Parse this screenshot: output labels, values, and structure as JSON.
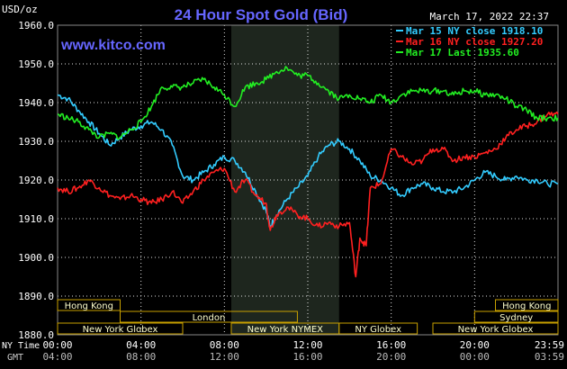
{
  "header": {
    "title": "24 Hour Spot Gold (Bid)",
    "datetime": "March 17, 2022 22:37",
    "watermark": "www.kitco.com",
    "unit_label": "USD/oz"
  },
  "legend": {
    "placement": "top-right",
    "items": [
      {
        "label": "Mar 15 NY close 1918.10",
        "color": "#33ccff"
      },
      {
        "label": "Mar 16 NY close 1927.20",
        "color": "#ff2020"
      },
      {
        "label": "Mar 17 Last 1935.60",
        "color": "#22ee22"
      }
    ]
  },
  "axis_labels": {
    "ny_time": "NY Time",
    "gmt": "GMT"
  },
  "colors": {
    "background": "#000000",
    "grid": "#e0e0e0",
    "title": "#6666ff",
    "watermark": "#6666ff",
    "market_box_bg": "#ffffcc",
    "market_box_border": "#c8a000",
    "nymex_shade": "#1e261e"
  },
  "markets": [
    {
      "label": "Hong Kong",
      "start": 0.0,
      "end": 3.0,
      "row": 0
    },
    {
      "label": "Hong Kong",
      "start": 21.0,
      "end": 24.0,
      "row": 0
    },
    {
      "label": "London",
      "start": 3.0,
      "end": 11.5,
      "row": 1
    },
    {
      "label": "Sydney",
      "start": 20.0,
      "end": 24.0,
      "row": 1
    },
    {
      "label": "New York Globex",
      "start": 0.0,
      "end": 6.0,
      "row": 2
    },
    {
      "label": "New York NYMEX",
      "start": 8.33,
      "end": 13.5,
      "row": 2
    },
    {
      "label": "NY Globex",
      "start": 13.5,
      "end": 17.25,
      "row": 2
    },
    {
      "label": "New York Globex",
      "start": 18.0,
      "end": 24.0,
      "row": 2
    }
  ],
  "chart_data": {
    "type": "line",
    "title": "24 Hour Spot Gold (Bid)",
    "ylabel": "USD/oz",
    "xlabel": "",
    "ylim": [
      1880,
      1960
    ],
    "xlim": [
      0,
      24
    ],
    "grid": true,
    "y_ticks": [
      "1960.0",
      "1950.0",
      "1940.0",
      "1930.0",
      "1920.0",
      "1910.0",
      "1900.0",
      "1890.0",
      "1880.0"
    ],
    "y_tick_values": [
      1960,
      1950,
      1940,
      1930,
      1920,
      1910,
      1900,
      1890,
      1880
    ],
    "x_ticks_ny": [
      "00:00",
      "04:00",
      "08:00",
      "12:00",
      "16:00",
      "20:00",
      "23:59"
    ],
    "x_ticks_gmt": [
      "04:00",
      "08:00",
      "12:00",
      "16:00",
      "20:00",
      "00:00",
      "03:59"
    ],
    "x_tick_values": [
      0,
      4,
      8,
      12,
      16,
      20,
      24
    ],
    "shaded_session": {
      "start": 8.33,
      "end": 13.5
    },
    "series": [
      {
        "name": "Mar 15 NY close 1918.10",
        "color": "#33ccff",
        "x": [
          0,
          0.5,
          1,
          1.5,
          2,
          2.5,
          3,
          3.5,
          4,
          4.5,
          5,
          5.5,
          6,
          6.5,
          7,
          7.5,
          8,
          8.5,
          9,
          9.5,
          10,
          10.2,
          10.5,
          11,
          11.5,
          12,
          12.5,
          13,
          13.5,
          14,
          14.5,
          15,
          15.5,
          16,
          16.5,
          17,
          17.5,
          18,
          18.5,
          19,
          19.5,
          20,
          20.5,
          21,
          21.5,
          22,
          22.5,
          23,
          23.5,
          24
        ],
        "y": [
          1942,
          1941,
          1938,
          1935,
          1932,
          1929,
          1931,
          1933,
          1934,
          1935,
          1933,
          1929,
          1921,
          1920,
          1922,
          1924,
          1926,
          1925,
          1922,
          1917,
          1912,
          1908,
          1911,
          1915,
          1918,
          1921,
          1926,
          1929,
          1930,
          1928,
          1925,
          1921,
          1920,
          1918,
          1916,
          1918,
          1919,
          1918,
          1917,
          1917,
          1918,
          1920,
          1922,
          1921,
          1920,
          1921,
          1920,
          1920,
          1919,
          1919
        ]
      },
      {
        "name": "Mar 16 NY close 1927.20",
        "color": "#ff2020",
        "x": [
          0,
          0.5,
          1,
          1.5,
          2,
          2.5,
          3,
          3.5,
          4,
          4.5,
          5,
          5.5,
          6,
          6.5,
          7,
          7.5,
          8,
          8.5,
          9,
          9.5,
          10,
          10.2,
          10.5,
          11,
          11.5,
          12,
          12.5,
          13,
          13.5,
          14,
          14.3,
          14.5,
          14.8,
          15,
          15.5,
          16,
          16.5,
          17,
          17.5,
          18,
          18.5,
          19,
          19.5,
          20,
          20.5,
          21,
          21.5,
          22,
          22.5,
          23,
          23.5,
          24
        ],
        "y": [
          1918,
          1917,
          1918,
          1920,
          1918,
          1916,
          1915,
          1916,
          1915,
          1914,
          1915,
          1917,
          1914,
          1917,
          1920,
          1922,
          1923,
          1917,
          1920,
          1916,
          1914,
          1907,
          1911,
          1913,
          1911,
          1910,
          1908,
          1909,
          1908,
          1909,
          1895,
          1905,
          1903,
          1918,
          1919,
          1928,
          1926,
          1924,
          1925,
          1928,
          1928,
          1925,
          1926,
          1926,
          1927,
          1928,
          1931,
          1933,
          1934,
          1935,
          1937,
          1937
        ]
      },
      {
        "name": "Mar 17 Last 1935.60",
        "color": "#22ee22",
        "x": [
          0,
          0.5,
          1,
          1.5,
          2,
          2.5,
          3,
          3.5,
          4,
          4.5,
          5,
          5.5,
          6,
          6.5,
          7,
          7.5,
          8,
          8.5,
          9,
          9.5,
          10,
          10.5,
          11,
          11.5,
          12,
          12.5,
          13,
          13.5,
          14,
          14.5,
          15,
          15.5,
          16,
          16.5,
          17,
          17.5,
          18,
          18.5,
          19,
          19.5,
          20,
          20.5,
          21,
          21.5,
          22,
          22.5,
          23,
          23.5,
          24
        ],
        "y": [
          1937,
          1936,
          1935,
          1933,
          1931,
          1932,
          1931,
          1933,
          1935,
          1939,
          1944,
          1944,
          1944,
          1945,
          1946,
          1944,
          1942,
          1939,
          1944,
          1945,
          1946,
          1948,
          1949,
          1947,
          1947,
          1945,
          1943,
          1941,
          1942,
          1941,
          1940,
          1942,
          1940,
          1942,
          1943,
          1943,
          1943,
          1943,
          1942,
          1943,
          1943,
          1942,
          1942,
          1941,
          1939,
          1938,
          1936,
          1936,
          1936
        ]
      }
    ]
  }
}
